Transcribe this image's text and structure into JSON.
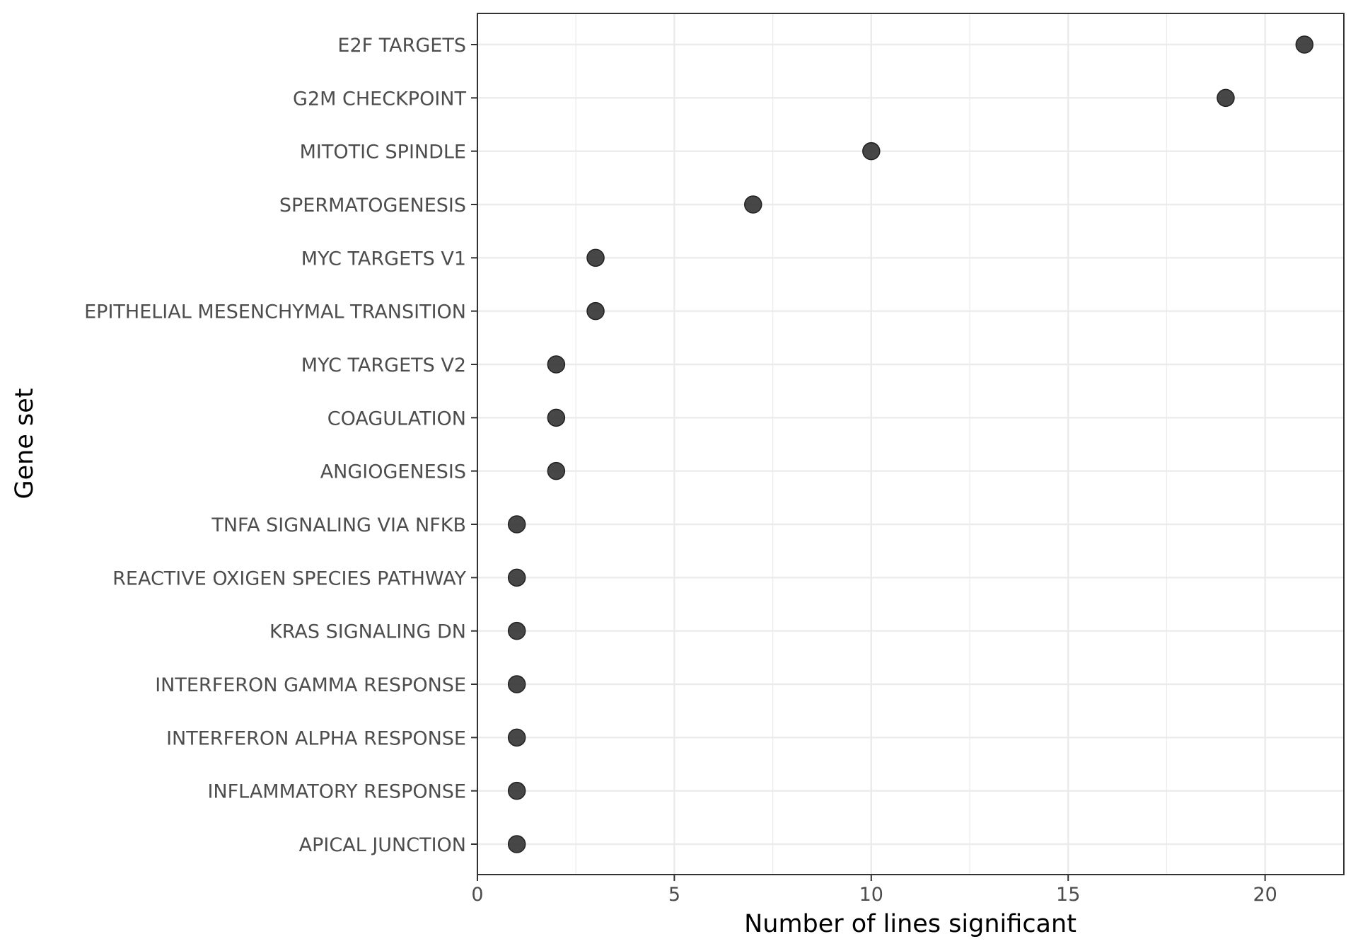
{
  "chart_data": {
    "type": "scatter",
    "xlabel": "Number of lines significant",
    "ylabel": "Gene set",
    "xlim": [
      0,
      22
    ],
    "x_ticks": [
      "0",
      "5",
      "10",
      "15",
      "20"
    ],
    "x_tick_values": [
      0,
      5,
      10,
      15,
      20
    ],
    "grid": true,
    "point_color": "#333333",
    "categories": [
      "E2F TARGETS",
      "G2M CHECKPOINT",
      "MITOTIC SPINDLE",
      "SPERMATOGENESIS",
      "MYC TARGETS V1",
      "EPITHELIAL MESENCHYMAL TRANSITION",
      "MYC TARGETS V2",
      "COAGULATION",
      "ANGIOGENESIS",
      "TNFA SIGNALING VIA NFKB",
      "REACTIVE OXIGEN SPECIES PATHWAY",
      "KRAS SIGNALING DN",
      "INTERFERON GAMMA RESPONSE",
      "INTERFERON ALPHA RESPONSE",
      "INFLAMMATORY RESPONSE",
      "APICAL JUNCTION"
    ],
    "values": [
      21,
      19,
      10,
      7,
      3,
      3,
      2,
      2,
      2,
      1,
      1,
      1,
      1,
      1,
      1,
      1
    ]
  }
}
